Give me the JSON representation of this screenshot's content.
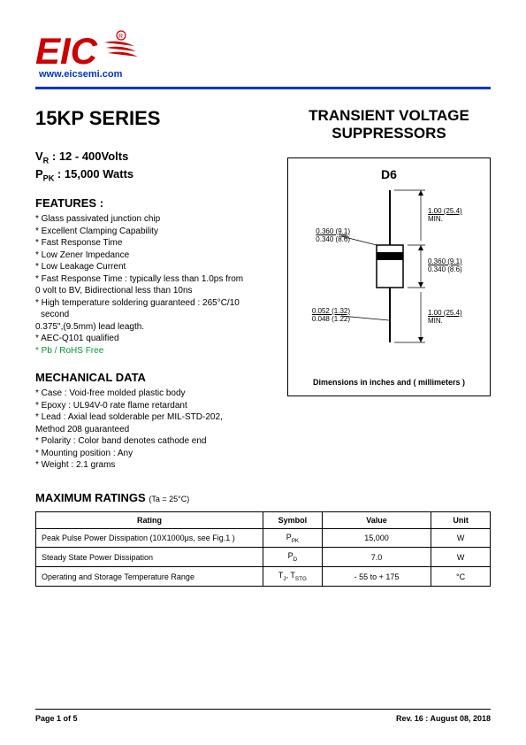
{
  "logo": {
    "text": "EIC",
    "url": "www.eicsemi.com",
    "red": "#cc0000",
    "blue": "#0033cc"
  },
  "left": {
    "series_title": "15KP SERIES",
    "vr_label": "VR : 12 - 400Volts",
    "ppk_label": "PPK : 15,000 Watts",
    "features_head": "FEATURES :",
    "features": [
      "* Glass passivated junction chip",
      "* Excellent Clamping Capability",
      "* Fast Response Time",
      "* Low Zener Impedance",
      "* Low Leakage Current",
      "* Fast Response Time : typically less than 1.0ps from",
      "  0 volt to BV, Bidirectional less than 10ns",
      "* High temperature soldering guaranteed : 265°C/10 second",
      "  0.375\",(9.5mm) lead leagth.",
      "* AEC-Q101 qualified"
    ],
    "feature_green": "* Pb / RoHS Free",
    "mech_head": "MECHANICAL DATA",
    "mech": [
      "*  Case : Void-free molded plastic body",
      "*  Epoxy : UL94V-0 rate flame retardant",
      "*  Lead : Axial lead solderable per MIL-STD-202,",
      "               Method 208 guaranteed",
      "*  Polarity : Color band denotes cathode end",
      "*  Mounting  position : Any",
      "*  Weight :    2.1   grams"
    ]
  },
  "right": {
    "title_l1": "TRANSIENT VOLTAGE",
    "title_l2": "SUPPRESSORS",
    "pkg_label": "D6",
    "dims": {
      "body_dia_in": "0.360 (9.1)",
      "body_dia_mm": "0.340 (8.6)",
      "body_len_in": "0.360 (9.1)",
      "body_len_mm": "0.340 (8.6)",
      "lead_dia_in": "0.052 (1.32)",
      "lead_dia_mm": "0.048 (1.22)",
      "lead_len_top": "1.00 (25.4)",
      "lead_len_top2": "MIN.",
      "lead_len_bot": "1.00 (25.4)",
      "lead_len_bot2": "MIN."
    },
    "caption": "Dimensions in inches and ( millimeters )"
  },
  "ratings": {
    "head": "MAXIMUM RATINGS",
    "sub": "(Ta = 25°C)",
    "columns": [
      "Rating",
      "Symbol",
      "Value",
      "Unit"
    ],
    "col_widths": [
      "50%",
      "13%",
      "24%",
      "13%"
    ],
    "rows": [
      [
        "Peak Pulse Power Dissipation (10X1000μs, see Fig.1 )",
        "P<sub>PK</sub>",
        "15,000",
        "W"
      ],
      [
        "Steady State Power Dissipation",
        "P<sub>D</sub>",
        "7.0",
        "W"
      ],
      [
        "Operating and Storage Temperature Range",
        "T<sub>J</sub>, T<sub>STG</sub>",
        "- 55 to + 175",
        "°C"
      ]
    ]
  },
  "footer": {
    "left": "Page 1 of 5",
    "right": "Rev. 16 : August 08, 2018"
  },
  "colors": {
    "accent_blue": "#0033cc",
    "green": "#009933",
    "black": "#000000",
    "bg": "#ffffff"
  }
}
